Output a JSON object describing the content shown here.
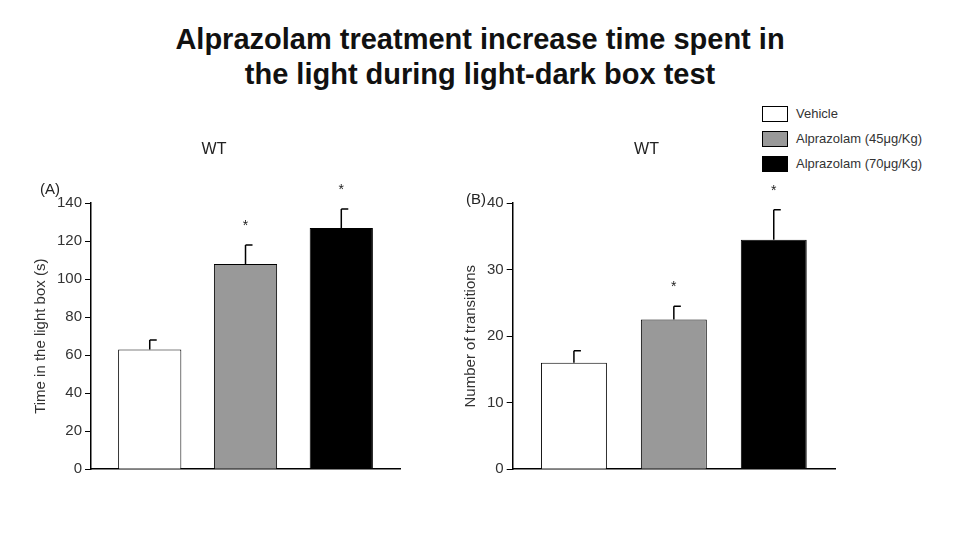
{
  "title": "Alprazolam treatment increase time spent in\nthe light during light-dark box test",
  "chart_data": [
    {
      "type": "bar",
      "panel": "(A)",
      "title": "WT",
      "y_label": "Time in the light box (s)",
      "categories": [
        null
      ],
      "series": [
        {
          "name": "Vehicle",
          "color": "#ffffff",
          "values": [
            63
          ],
          "errors": [
            5
          ]
        },
        {
          "name": "Alprazolam (45μg/Kg)",
          "color": "#999999",
          "values": [
            108
          ],
          "errors": [
            10
          ],
          "annotations": [
            "*"
          ]
        },
        {
          "name": "Alprazolam (70μg/Kg)",
          "color": "#000000",
          "values": [
            127
          ],
          "errors": [
            10
          ],
          "annotations": [
            "*"
          ]
        }
      ],
      "ylim": [
        0,
        140
      ],
      "yticks": [
        0,
        20,
        40,
        60,
        80,
        100,
        120,
        140
      ],
      "grid": false
    },
    {
      "type": "bar",
      "panel": "(B)",
      "title": "WT",
      "y_label": "Number of transitions",
      "categories": [
        null
      ],
      "series": [
        {
          "name": "Vehicle",
          "color": "#ffffff",
          "values": [
            16
          ],
          "errors": [
            1.8
          ]
        },
        {
          "name": "Alprazolam (45μg/Kg)",
          "color": "#999999",
          "values": [
            22.5
          ],
          "errors": [
            2
          ],
          "annotations": [
            "*"
          ]
        },
        {
          "name": "Alprazolam (70μg/Kg)",
          "color": "#000000",
          "values": [
            34.5
          ],
          "errors": [
            4.5
          ],
          "annotations": [
            "*"
          ]
        }
      ],
      "ylim": [
        0,
        40
      ],
      "yticks": [
        0,
        10,
        20,
        30,
        40
      ],
      "grid": false,
      "legend": "upper right"
    }
  ]
}
